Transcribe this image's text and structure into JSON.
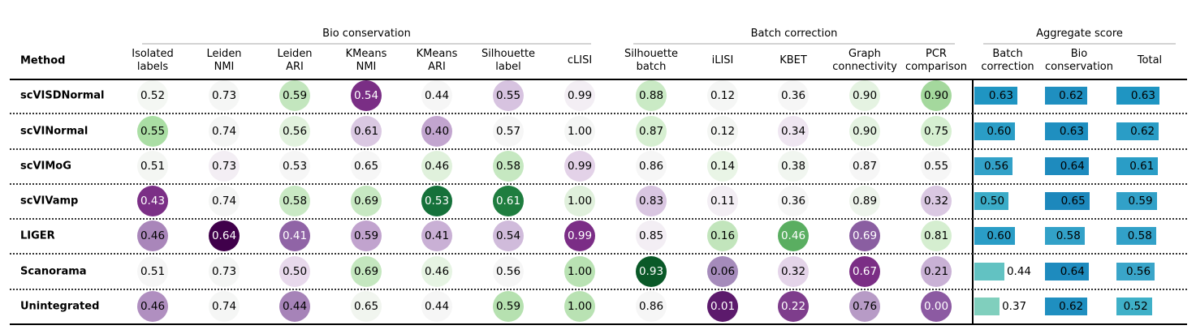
{
  "chart_data": {
    "type": "table",
    "method_header": "Method",
    "groups": [
      {
        "name": "Bio conservation",
        "columns": [
          "Isolated labels",
          "Leiden NMI",
          "Leiden ARI",
          "KMeans NMI",
          "KMeans ARI",
          "Silhouette label",
          "cLISI"
        ]
      },
      {
        "name": "Batch correction",
        "columns": [
          "Silhouette batch",
          "iLISI",
          "KBET",
          "Graph connectivity",
          "PCR comparison"
        ]
      },
      {
        "name": "Aggregate score",
        "columns": [
          "Batch correction",
          "Bio conservation",
          "Total"
        ]
      }
    ],
    "columns": [
      {
        "label": "Isolated\nlabels",
        "kind": "circle"
      },
      {
        "label": "Leiden\nNMI",
        "kind": "circle"
      },
      {
        "label": "Leiden\nARI",
        "kind": "circle"
      },
      {
        "label": "KMeans\nNMI",
        "kind": "circle"
      },
      {
        "label": "KMeans\nARI",
        "kind": "circle"
      },
      {
        "label": "Silhouette\nlabel",
        "kind": "circle"
      },
      {
        "label": "cLISI",
        "kind": "circle"
      },
      {
        "label": "Silhouette\nbatch",
        "kind": "circle"
      },
      {
        "label": "iLISI",
        "kind": "circle"
      },
      {
        "label": "KBET",
        "kind": "circle"
      },
      {
        "label": "Graph\nconnectivity",
        "kind": "circle"
      },
      {
        "label": "PCR\ncomparison",
        "kind": "circle"
      },
      {
        "label": "Batch\ncorrection",
        "kind": "bar"
      },
      {
        "label": "Bio\nconservation",
        "kind": "bar"
      },
      {
        "label": "Total",
        "kind": "bar"
      }
    ],
    "rows": [
      {
        "method": "scVISDNormal",
        "values": [
          "0.52",
          "0.73",
          "0.59",
          "0.54",
          "0.44",
          "0.55",
          "0.99",
          "0.88",
          "0.12",
          "0.36",
          "0.90",
          "0.90",
          "0.63",
          "0.62",
          "0.63"
        ]
      },
      {
        "method": "scVINormal",
        "values": [
          "0.55",
          "0.74",
          "0.56",
          "0.61",
          "0.40",
          "0.57",
          "1.00",
          "0.87",
          "0.12",
          "0.34",
          "0.90",
          "0.75",
          "0.60",
          "0.63",
          "0.62"
        ]
      },
      {
        "method": "scVIMoG",
        "values": [
          "0.51",
          "0.73",
          "0.53",
          "0.65",
          "0.46",
          "0.58",
          "0.99",
          "0.86",
          "0.14",
          "0.38",
          "0.87",
          "0.55",
          "0.56",
          "0.64",
          "0.61"
        ]
      },
      {
        "method": "scVIVamp",
        "values": [
          "0.43",
          "0.74",
          "0.58",
          "0.69",
          "0.53",
          "0.61",
          "1.00",
          "0.83",
          "0.11",
          "0.36",
          "0.89",
          "0.32",
          "0.50",
          "0.65",
          "0.59"
        ]
      },
      {
        "method": "LIGER",
        "values": [
          "0.46",
          "0.64",
          "0.41",
          "0.59",
          "0.41",
          "0.54",
          "0.99",
          "0.85",
          "0.16",
          "0.46",
          "0.69",
          "0.81",
          "0.60",
          "0.58",
          "0.58"
        ]
      },
      {
        "method": "Scanorama",
        "values": [
          "0.51",
          "0.73",
          "0.50",
          "0.69",
          "0.46",
          "0.56",
          "1.00",
          "0.93",
          "0.06",
          "0.32",
          "0.67",
          "0.21",
          "0.44",
          "0.64",
          "0.56"
        ]
      },
      {
        "method": "Unintegrated",
        "values": [
          "0.46",
          "0.74",
          "0.44",
          "0.65",
          "0.44",
          "0.59",
          "1.00",
          "0.86",
          "0.01",
          "0.22",
          "0.76",
          "0.00",
          "0.37",
          "0.62",
          "0.52"
        ]
      }
    ],
    "circle_colors": [
      [
        "#f4f7f3",
        "#f5f6f5",
        "#c3e6be",
        "#7a2e85",
        "#f6f6f6",
        "#d7c3e0",
        "#f3eef4",
        "#caeac5",
        "#f5f6f5",
        "#f6f6f6",
        "#e5f3e2",
        "#a4d89d"
      ],
      [
        "#aadeA4",
        "#f5f6f5",
        "#e2f2de",
        "#dac8e2",
        "#c2a5cf",
        "#f6f6f6",
        "#f5f6f5",
        "#d6efd1",
        "#f4f6f3",
        "#efe6f1",
        "#e5f3e2",
        "#d6efd1"
      ],
      [
        "#f4f6f3",
        "#f3eef4",
        "#f6f6f6",
        "#f6f6f6",
        "#e0f1dc",
        "#c6e8c1",
        "#e3d2e8",
        "#f6f6f6",
        "#e9f5e6",
        "#f1f6f0",
        "#f6f6f6",
        "#f6f6f6"
      ],
      [
        "#7b2f86",
        "#f5f6f5",
        "#c9e9c4",
        "#c7e8c2",
        "#15713a",
        "#1f7d3f",
        "#e0f0dc",
        "#d9c6e1",
        "#f3eef4",
        "#f6f6f6",
        "#eef5ec",
        "#dac8e2"
      ],
      [
        "#a986ba",
        "#40004b",
        "#9064a6",
        "#c1a3ce",
        "#c9b0d5",
        "#d0bbdb",
        "#7b2d86",
        "#f3eef4",
        "#c2e5bc",
        "#5aae61",
        "#8a5ea1",
        "#d5eed0"
      ],
      [
        "#f6f6f6",
        "#f5f6f5",
        "#e8d9ec",
        "#c4e7bf",
        "#e6f4e3",
        "#f6f6f6",
        "#b9e2b3",
        "#0a5928",
        "#a58bbb",
        "#e4d4e9",
        "#7b2e85",
        "#c9b1d5"
      ],
      [
        "#b08fc0",
        "#f5f6f5",
        "#a683b8",
        "#f1f5ef",
        "#f6f6f6",
        "#b6e1b0",
        "#b9e2b3",
        "#f6f6f6",
        "#5c1a6c",
        "#7e3d8c",
        "#b79bc6",
        "#8c5aa2"
      ]
    ],
    "circle_text_colors": [
      [
        "#000",
        "#000",
        "#000",
        "#fff",
        "#000",
        "#000",
        "#000",
        "#000",
        "#000",
        "#000",
        "#000",
        "#000"
      ],
      [
        "#000",
        "#000",
        "#000",
        "#000",
        "#000",
        "#000",
        "#000",
        "#000",
        "#000",
        "#000",
        "#000",
        "#000"
      ],
      [
        "#000",
        "#000",
        "#000",
        "#000",
        "#000",
        "#000",
        "#000",
        "#000",
        "#000",
        "#000",
        "#000",
        "#000"
      ],
      [
        "#fff",
        "#000",
        "#000",
        "#000",
        "#fff",
        "#fff",
        "#000",
        "#000",
        "#000",
        "#000",
        "#000",
        "#000"
      ],
      [
        "#000",
        "#fff",
        "#fff",
        "#000",
        "#000",
        "#000",
        "#fff",
        "#000",
        "#000",
        "#fff",
        "#fff",
        "#000"
      ],
      [
        "#000",
        "#000",
        "#000",
        "#000",
        "#000",
        "#000",
        "#000",
        "#fff",
        "#000",
        "#000",
        "#fff",
        "#000"
      ],
      [
        "#000",
        "#000",
        "#000",
        "#000",
        "#000",
        "#000",
        "#000",
        "#000",
        "#fff",
        "#fff",
        "#000",
        "#fff"
      ]
    ],
    "bar_colors": [
      [
        "#1f95c2",
        "#1f8fc0",
        "#1f95c2"
      ],
      [
        "#2a9dc6",
        "#1f8fc0",
        "#2a9dc6"
      ],
      [
        "#32a1c8",
        "#1e8bbe",
        "#2a9dc6"
      ],
      [
        "#3bacc8",
        "#1d88bc",
        "#32a1c8"
      ],
      [
        "#2a9dc6",
        "#32a1c8",
        "#32a1c8"
      ],
      [
        "#62c2c2",
        "#1e8bbe",
        "#3aa5c9"
      ],
      [
        "#80cfbd",
        "#1f8fc0",
        "#3fb0c8"
      ]
    ]
  }
}
